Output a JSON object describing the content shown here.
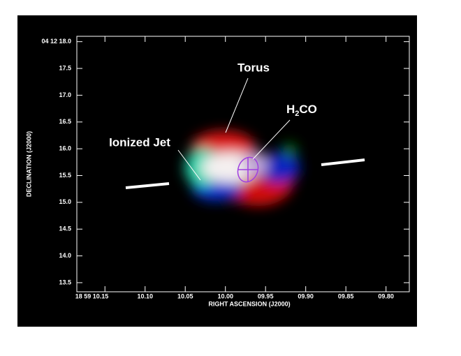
{
  "chart_data": {
    "type": "image",
    "xlabel": "RIGHT ASCENSION (J2000)",
    "ylabel": "DECLINATION (J2000)",
    "xlim": [
      10.185,
      9.771
    ],
    "ylim": [
      13.33,
      18.1
    ],
    "xticks": [
      {
        "value": 10.15,
        "label": "18 59 10.15"
      },
      {
        "value": 10.1,
        "label": "10.10"
      },
      {
        "value": 10.05,
        "label": "10.05"
      },
      {
        "value": 10,
        "label": "10.00"
      },
      {
        "value": 9.95,
        "label": "09.95"
      },
      {
        "value": 9.9,
        "label": "09.90"
      },
      {
        "value": 9.85,
        "label": "09.85"
      },
      {
        "value": 9.8,
        "label": "09.80"
      }
    ],
    "yticks": [
      {
        "value": 18,
        "label": "04 12 18.0"
      },
      17.5,
      {
        "value": 17,
        "label": "17.0"
      },
      16.5,
      {
        "value": 16,
        "label": "16.0"
      },
      15.5,
      {
        "value": 15,
        "label": "15.0"
      },
      14.5,
      {
        "value": 14,
        "label": "14.0"
      },
      13.5
    ],
    "annotations": {
      "torus": "Torus",
      "h2co": [
        "H",
        "2",
        "CO"
      ],
      "jet": "Ionized Jet"
    }
  }
}
